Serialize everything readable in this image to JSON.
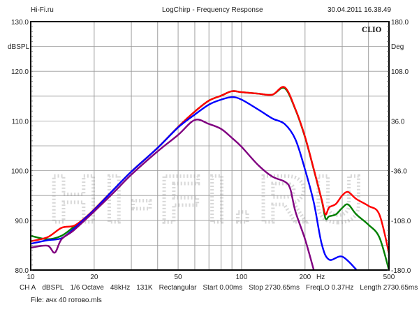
{
  "header": {
    "left": "Hi-Fi.ru",
    "title": "LogChirp - Frequency Response",
    "datetime": "30.04.2011 16.38.49"
  },
  "logo": "CLIO",
  "watermark": "HI-FI.RU",
  "info": {
    "channel": "CH A",
    "unit": "dBSPL",
    "smoothing": "1/6 Octave",
    "rate": "48kHz",
    "size": "131K",
    "window": "Rectangular",
    "start": "Start 0.00ms",
    "stop": "Stop 2730.65ms",
    "freqlo": "FreqLO 0.37Hz",
    "length": "Length 2730.65ms"
  },
  "file": "File: ачх 40 готово.mls",
  "chart_data": {
    "type": "line",
    "title": "LogChirp - Frequency Response",
    "xlabel": "Hz",
    "ylabel": "dBSPL",
    "y2label": "Deg",
    "xscale": "log",
    "xlim": [
      10,
      500
    ],
    "ylim": [
      80,
      130
    ],
    "y2lim": [
      -180,
      180
    ],
    "xticks": [
      {
        "v": 10,
        "l": "10"
      },
      {
        "v": 20,
        "l": "20"
      },
      {
        "v": 50,
        "l": "50"
      },
      {
        "v": 100,
        "l": "100"
      },
      {
        "v": 200,
        "l": "200"
      },
      {
        "v": 500,
        "l": "500"
      }
    ],
    "yticks": [
      {
        "v": 130,
        "l": "130.0"
      },
      {
        "v": 120,
        "l": "120.0"
      },
      {
        "v": 110,
        "l": "110.0"
      },
      {
        "v": 100,
        "l": "100.0"
      },
      {
        "v": 90,
        "l": "90.0"
      },
      {
        "v": 80,
        "l": "80.0"
      }
    ],
    "y2ticks": [
      {
        "v": 130,
        "l": "180.0"
      },
      {
        "v": 120,
        "l": "108.0"
      },
      {
        "v": 110,
        "l": "36.0"
      },
      {
        "v": 100,
        "l": "-36.0"
      },
      {
        "v": 90,
        "l": "-108.0"
      },
      {
        "v": 80,
        "l": "-180.0"
      }
    ],
    "grid": true,
    "series": [
      {
        "name": "green",
        "color": "#008000",
        "x": [
          10,
          12,
          14,
          16,
          18,
          20,
          25,
          30,
          40,
          50,
          60,
          70,
          80,
          90,
          100,
          120,
          140,
          160,
          180,
          200,
          220,
          240,
          250,
          260,
          280,
          300,
          320,
          350,
          400,
          450,
          500
        ],
        "y": [
          86.9,
          86.2,
          86.9,
          88.7,
          90.4,
          92.2,
          96.4,
          99.8,
          104.6,
          108.8,
          111.9,
          114.1,
          115.1,
          116.0,
          115.8,
          115.5,
          115.3,
          116.6,
          112.3,
          106.7,
          100.2,
          94.0,
          90.4,
          90.8,
          91.2,
          92.5,
          93.2,
          91.2,
          89.1,
          86.6,
          80.0
        ]
      },
      {
        "name": "red",
        "color": "#ff0000",
        "x": [
          10,
          12,
          14,
          16,
          18,
          20,
          25,
          30,
          40,
          50,
          60,
          70,
          80,
          90,
          100,
          120,
          140,
          160,
          180,
          200,
          220,
          240,
          250,
          260,
          280,
          300,
          320,
          350,
          400,
          450,
          500
        ],
        "y": [
          85.8,
          86.6,
          88.5,
          88.9,
          90.4,
          92.2,
          96.4,
          99.8,
          104.6,
          108.8,
          111.9,
          114.1,
          115.1,
          116.0,
          115.8,
          115.5,
          115.3,
          116.8,
          112.4,
          106.8,
          100.3,
          94.1,
          91.2,
          92.6,
          93.3,
          95.0,
          95.7,
          94.3,
          92.9,
          91.2,
          83.4
        ]
      },
      {
        "name": "blue",
        "color": "#0000ff",
        "x": [
          10,
          12,
          14,
          16,
          18,
          20,
          25,
          30,
          40,
          50,
          60,
          70,
          80,
          90,
          100,
          120,
          140,
          160,
          180,
          200,
          220,
          240,
          260,
          300,
          350
        ],
        "y": [
          85.3,
          86.0,
          86.4,
          88.3,
          90.3,
          92.1,
          96.4,
          99.8,
          104.6,
          108.7,
          111.3,
          113.3,
          114.3,
          114.8,
          114.3,
          112.3,
          110.5,
          109.4,
          106.3,
          100.2,
          93.6,
          85.2,
          82.1,
          82.7,
          80.1
        ]
      },
      {
        "name": "purple",
        "color": "#800080",
        "x": [
          10,
          12,
          13,
          14,
          16,
          20,
          25,
          30,
          40,
          50,
          60,
          70,
          80,
          90,
          100,
          120,
          140,
          160,
          170,
          180,
          200,
          220
        ],
        "y": [
          84.5,
          84.9,
          83.5,
          86.2,
          88.0,
          91.8,
          95.8,
          99.2,
          103.9,
          107.2,
          110.2,
          109.4,
          108.4,
          106.6,
          104.8,
          101.1,
          98.8,
          97.8,
          96.4,
          91.8,
          86.2,
          80.0
        ]
      }
    ]
  }
}
